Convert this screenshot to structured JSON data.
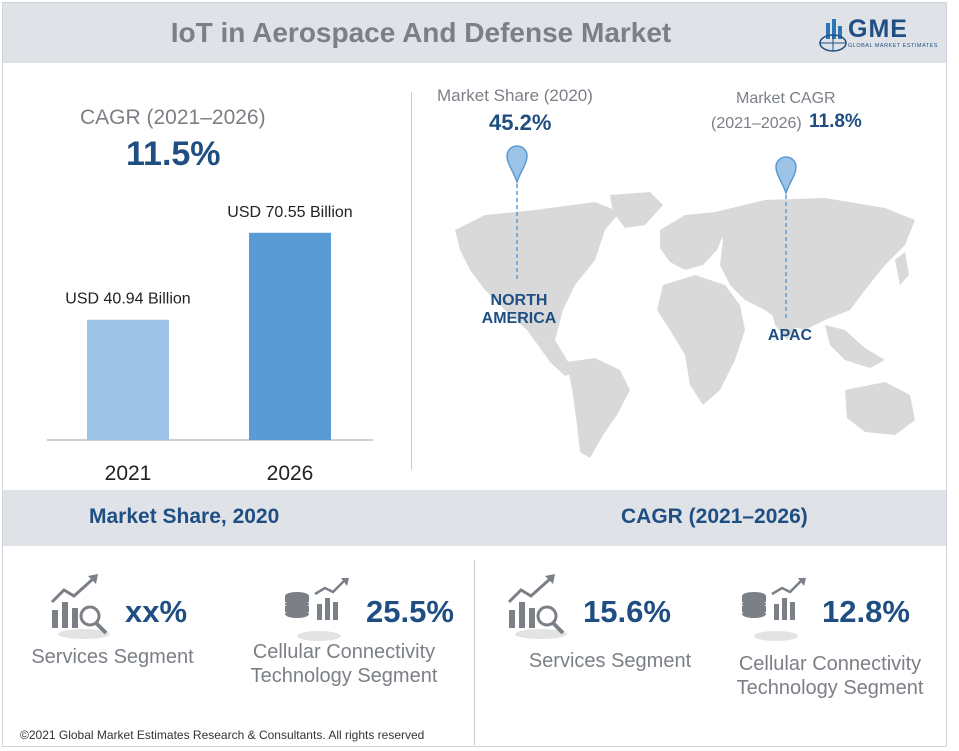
{
  "header": {
    "title": "IoT in Aerospace And Defense Market"
  },
  "logo": {
    "name": "GME",
    "subtitle": "GLOBAL MARKET ESTIMATES"
  },
  "cagr": {
    "label": "CAGR (2021–2026)",
    "value": "11.5%"
  },
  "chart_data": {
    "type": "bar",
    "categories": [
      "2021",
      "2026"
    ],
    "values": [
      40.94,
      70.55
    ],
    "data_labels": [
      "USD 40.94 Billion",
      "USD 70.55 Billion"
    ],
    "colors": [
      "#9dc3e6",
      "#5b9bd5"
    ],
    "ylim": [
      0,
      80
    ]
  },
  "map": {
    "share_label": "Market Share (2020)",
    "share_value": "45.2%",
    "share_region": "NORTH AMERICA",
    "cagr_label_line1": "Market CAGR",
    "cagr_label_line2": "(2021–2026)",
    "cagr_value": "11.8%",
    "cagr_region": "APAC"
  },
  "bottom": {
    "left_title": "Market Share, 2020",
    "right_title": "CAGR (2021–2026)",
    "segments": [
      {
        "value": "xx%",
        "label": "Services Segment",
        "icon": "growth-chart-magnifier-icon"
      },
      {
        "value": "25.5%",
        "label": "Cellular Connectivity Technology Segment",
        "icon": "database-chart-icon"
      },
      {
        "value": "15.6%",
        "label": "Services Segment",
        "icon": "growth-chart-magnifier-icon"
      },
      {
        "value": "12.8%",
        "label": "Cellular Connectivity Technology Segment",
        "icon": "database-chart-icon"
      }
    ]
  },
  "footer": {
    "text": "©2021 Global Market Estimates Research & Consultants. All rights reserved"
  }
}
